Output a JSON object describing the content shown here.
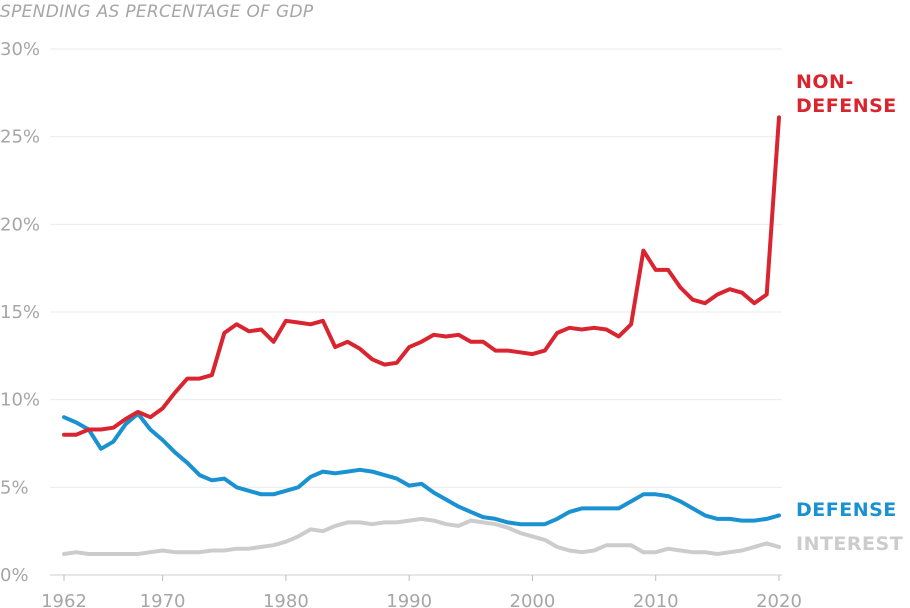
{
  "chart_data": {
    "type": "line",
    "title": "SPENDING AS PERCENTAGE OF GDP",
    "xlabel": "",
    "ylabel": "",
    "xlim": [
      1962,
      2020
    ],
    "ylim": [
      0,
      30
    ],
    "grid": true,
    "y_ticks": [
      0,
      5,
      10,
      15,
      20,
      25,
      30
    ],
    "y_tick_labels": [
      "0%",
      "5%",
      "10%",
      "15%",
      "20%",
      "25%",
      "30%"
    ],
    "x_ticks": [
      1962,
      1970,
      1980,
      1990,
      2000,
      2010,
      2020
    ],
    "x_tick_labels": [
      "1962",
      "1970",
      "1980",
      "1990",
      "2000",
      "2010",
      "2020"
    ],
    "x": [
      1962,
      1963,
      1964,
      1965,
      1966,
      1967,
      1968,
      1969,
      1970,
      1971,
      1972,
      1973,
      1974,
      1975,
      1976,
      1977,
      1978,
      1979,
      1980,
      1981,
      1982,
      1983,
      1984,
      1985,
      1986,
      1987,
      1988,
      1989,
      1990,
      1991,
      1992,
      1993,
      1994,
      1995,
      1996,
      1997,
      1998,
      1999,
      2000,
      2001,
      2002,
      2003,
      2004,
      2005,
      2006,
      2007,
      2008,
      2009,
      2010,
      2011,
      2012,
      2013,
      2014,
      2015,
      2016,
      2017,
      2018,
      2019,
      2020
    ],
    "series": [
      {
        "name": "NON-DEFENSE",
        "label_lines": [
          "NON-",
          "DEFENSE"
        ],
        "color": "#d9252f",
        "values": [
          8.0,
          8.0,
          8.3,
          8.3,
          8.4,
          8.9,
          9.3,
          9.0,
          9.5,
          10.4,
          11.2,
          11.2,
          11.4,
          13.8,
          14.3,
          13.9,
          14.0,
          13.3,
          14.5,
          14.4,
          14.3,
          14.5,
          13.0,
          13.3,
          12.9,
          12.3,
          12.0,
          12.1,
          13.0,
          13.3,
          13.7,
          13.6,
          13.7,
          13.3,
          13.3,
          12.8,
          12.8,
          12.7,
          12.6,
          12.8,
          13.8,
          14.1,
          14.0,
          14.1,
          14.0,
          13.6,
          14.3,
          18.5,
          17.4,
          17.4,
          16.4,
          15.7,
          15.5,
          16.0,
          16.3,
          16.1,
          15.5,
          16.0,
          26.1
        ]
      },
      {
        "name": "DEFENSE",
        "label_lines": [
          "DEFENSE"
        ],
        "color": "#1a91d1",
        "values": [
          9.0,
          8.7,
          8.3,
          7.2,
          7.6,
          8.6,
          9.2,
          8.3,
          7.7,
          7.0,
          6.4,
          5.7,
          5.4,
          5.5,
          5.0,
          4.8,
          4.6,
          4.6,
          4.8,
          5.0,
          5.6,
          5.9,
          5.8,
          5.9,
          6.0,
          5.9,
          5.7,
          5.5,
          5.1,
          5.2,
          4.7,
          4.3,
          3.9,
          3.6,
          3.3,
          3.2,
          3.0,
          2.9,
          2.9,
          2.9,
          3.2,
          3.6,
          3.8,
          3.8,
          3.8,
          3.8,
          4.2,
          4.6,
          4.6,
          4.5,
          4.2,
          3.8,
          3.4,
          3.2,
          3.2,
          3.1,
          3.1,
          3.2,
          3.4
        ]
      },
      {
        "name": "INTEREST",
        "label_lines": [
          "INTEREST"
        ],
        "color": "#cccccc",
        "values": [
          1.2,
          1.3,
          1.2,
          1.2,
          1.2,
          1.2,
          1.2,
          1.3,
          1.4,
          1.3,
          1.3,
          1.3,
          1.4,
          1.4,
          1.5,
          1.5,
          1.6,
          1.7,
          1.9,
          2.2,
          2.6,
          2.5,
          2.8,
          3.0,
          3.0,
          2.9,
          3.0,
          3.0,
          3.1,
          3.2,
          3.1,
          2.9,
          2.8,
          3.1,
          3.0,
          2.9,
          2.7,
          2.4,
          2.2,
          2.0,
          1.6,
          1.4,
          1.3,
          1.4,
          1.7,
          1.7,
          1.7,
          1.3,
          1.3,
          1.5,
          1.4,
          1.3,
          1.3,
          1.2,
          1.3,
          1.4,
          1.6,
          1.8,
          1.6
        ]
      }
    ]
  }
}
